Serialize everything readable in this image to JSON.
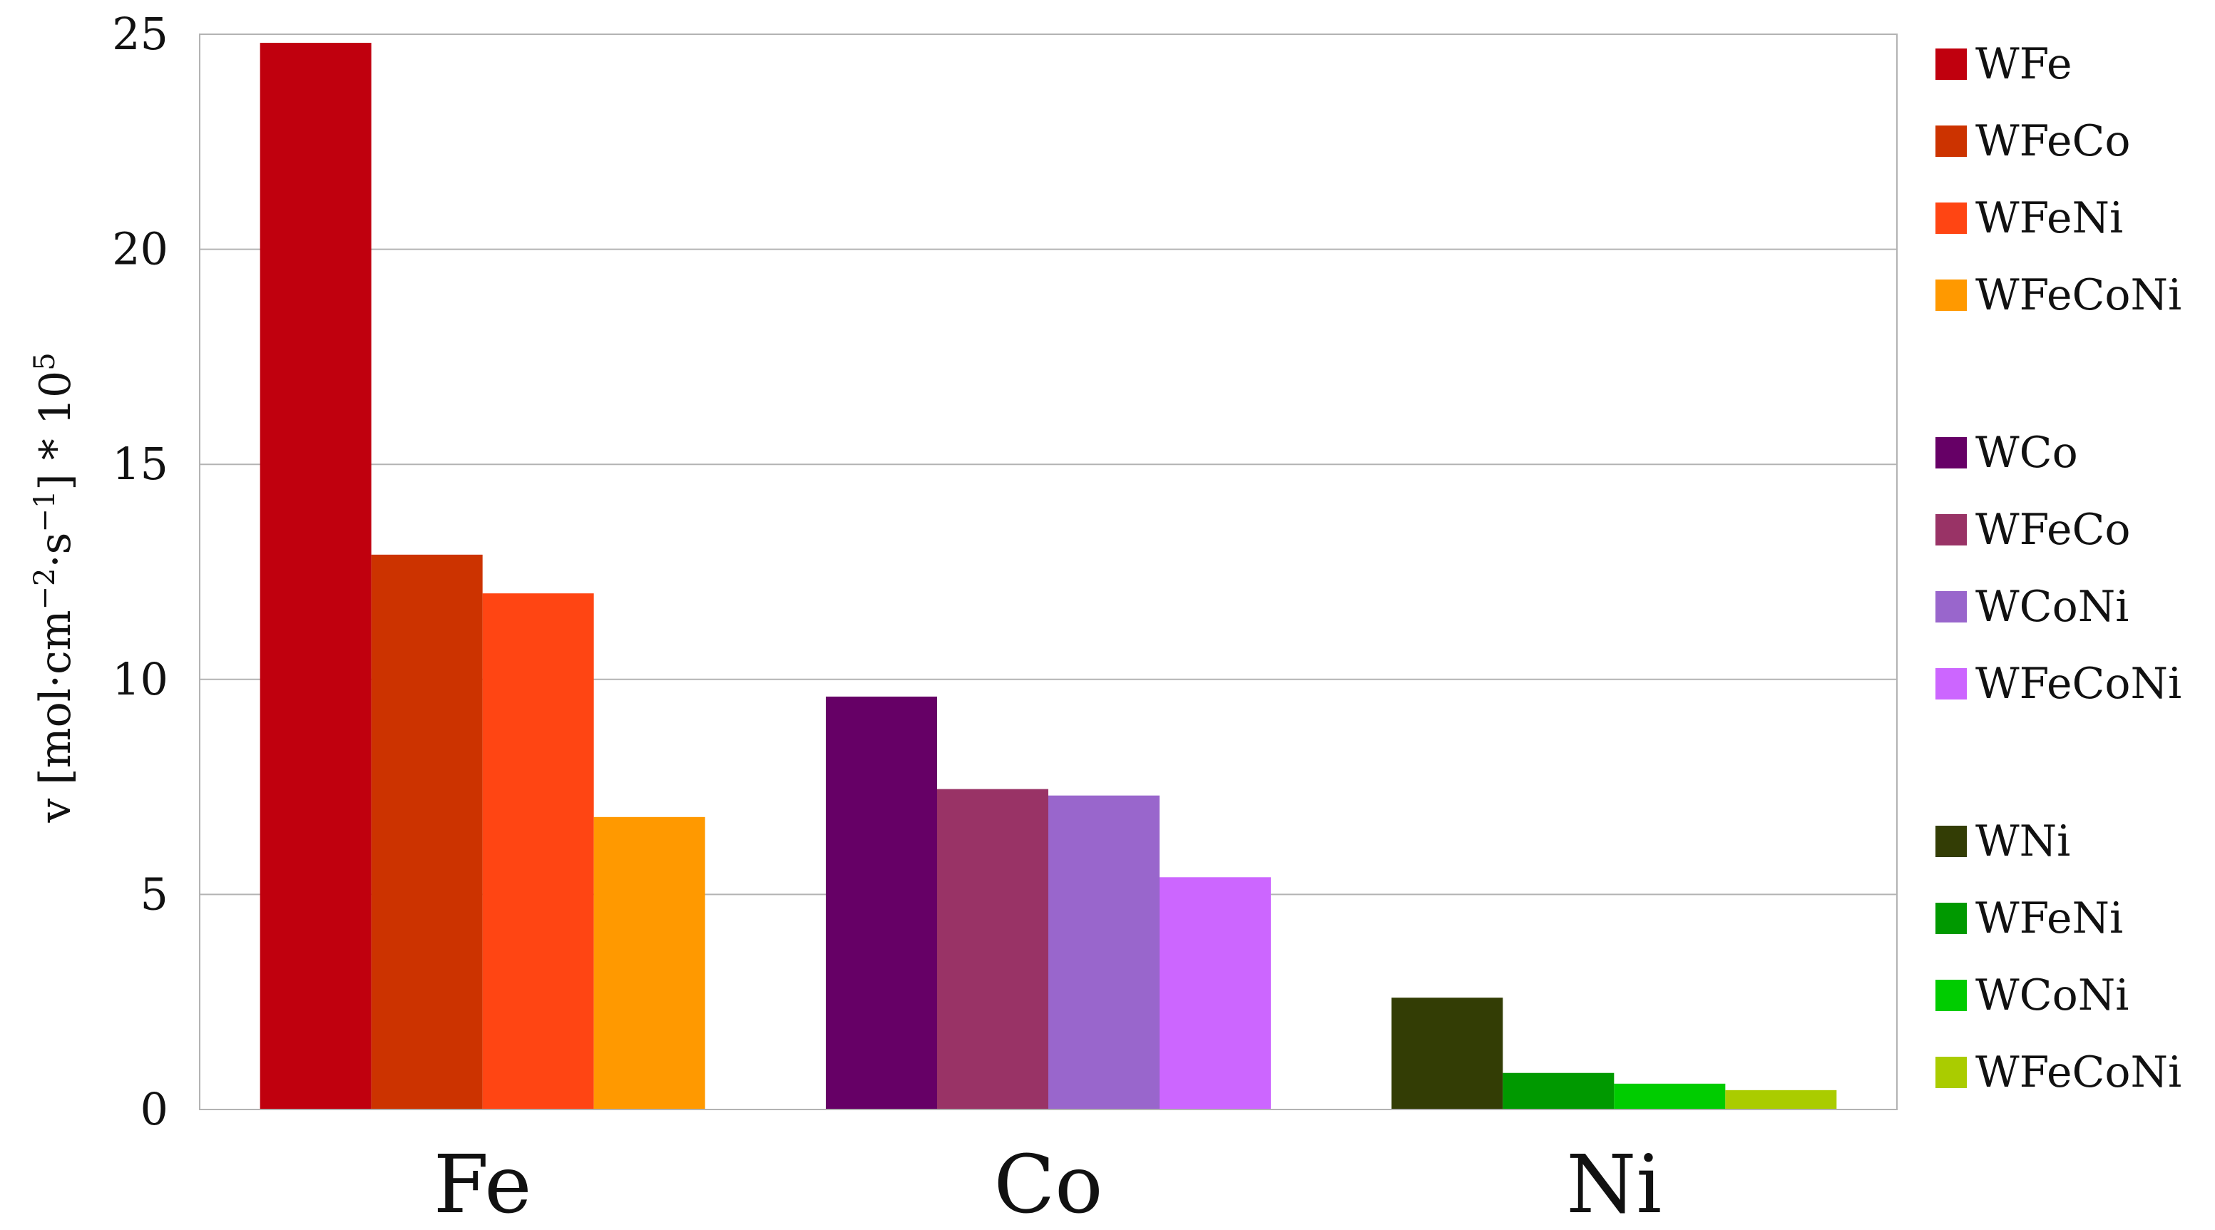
{
  "chart_data": {
    "type": "bar",
    "ylabel": {
      "prefix": "v [mol·cm",
      "exp1": "−2",
      "mid": "·s",
      "exp2": "−1",
      "suffix": "] * 10",
      "exp3": "5"
    },
    "ylim": [
      0,
      25
    ],
    "yticks": [
      0,
      5,
      10,
      15,
      20,
      25
    ],
    "grid": true,
    "legend_position": "right",
    "groups": [
      {
        "category": "Fe",
        "series": [
          {
            "name": "WFe",
            "value": 24.8,
            "color": "#c0000e"
          },
          {
            "name": "WFeCo",
            "value": 12.9,
            "color": "#cc3300"
          },
          {
            "name": "WFeNi",
            "value": 12.0,
            "color": "#ff4513"
          },
          {
            "name": "WFeCoNi",
            "value": 6.8,
            "color": "#ff9900"
          }
        ]
      },
      {
        "category": "Co",
        "series": [
          {
            "name": "WCo",
            "value": 9.6,
            "color": "#660066"
          },
          {
            "name": "WFeCo",
            "value": 7.45,
            "color": "#993366"
          },
          {
            "name": "WCoNi",
            "value": 7.3,
            "color": "#9966cc"
          },
          {
            "name": "WFeCoNi",
            "value": 5.4,
            "color": "#cc66ff"
          }
        ]
      },
      {
        "category": "Ni",
        "series": [
          {
            "name": "WNi",
            "value": 2.6,
            "color": "#333d05"
          },
          {
            "name": "WFeNi",
            "value": 0.85,
            "color": "#009900"
          },
          {
            "name": "WCoNi",
            "value": 0.6,
            "color": "#00cc00"
          },
          {
            "name": "WFeCoNi",
            "value": 0.45,
            "color": "#aacc00"
          }
        ]
      }
    ]
  }
}
